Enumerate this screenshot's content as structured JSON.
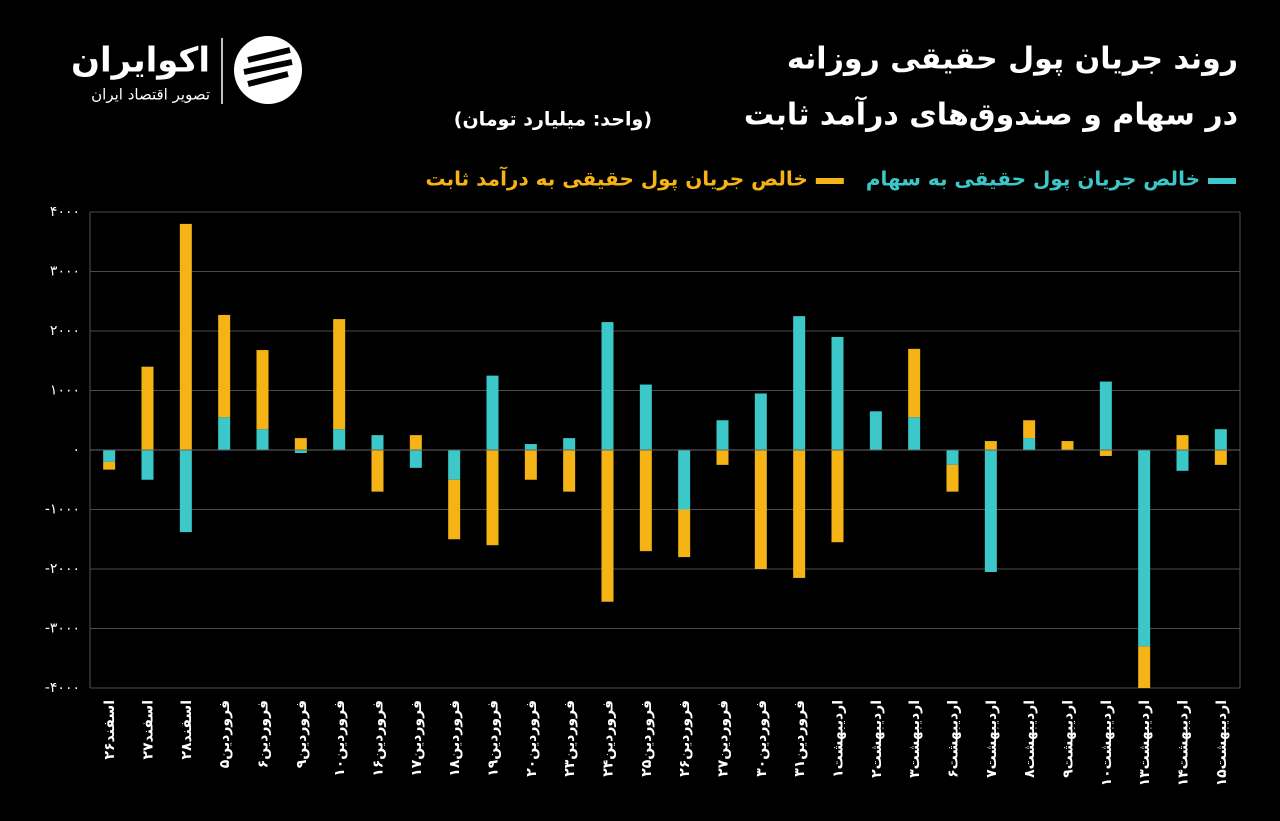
{
  "brand": {
    "name": "اکوایران",
    "tagline": "تصویر اقتصاد ایران"
  },
  "chart_data": {
    "type": "bar",
    "stacked": true,
    "title": "روند جریان پول حقیقی روزانه",
    "subtitle": "در سهام و صندوق‌های درآمد ثابت",
    "unit": "(واحد: میلیارد تومان)",
    "categories": [
      "اسفند۲۶",
      "اسفند۲۷",
      "اسفند۲۸",
      "فروردین۵",
      "فروردین۶",
      "فروردین۹",
      "فروردین۱۰",
      "فروردین۱۶",
      "فروردین۱۷",
      "فروردین۱۸",
      "فروردین۱۹",
      "فروردین۲۰",
      "فروردین۲۳",
      "فروردین۲۴",
      "فروردین۲۵",
      "فروردین۲۶",
      "فروردین۲۷",
      "فروردین۳۰",
      "فروردین۳۱",
      "اردیبهشت۱",
      "اردیبهشت۲",
      "اردیبهشت۳",
      "اردیبهشت۶",
      "اردیبهشت۷",
      "اردیبهشت۸",
      "اردیبهشت۹",
      "اردیبهشت۱۰",
      "اردیبهشت۱۳",
      "اردیبهشت۱۴",
      "اردیبهشت۱۵"
    ],
    "series": [
      {
        "name": "خالص جریان پول حقیقی به سهام",
        "color": "#3cc8c8",
        "values": [
          -200,
          -500,
          -1380,
          550,
          350,
          -50,
          350,
          250,
          -300,
          -500,
          1250,
          100,
          200,
          2150,
          1100,
          -1000,
          500,
          950,
          2250,
          1900,
          650,
          550,
          -250,
          -2050,
          200,
          0,
          1150,
          -3300,
          -350,
          350
        ]
      },
      {
        "name": "خالص جریان پول حقیقی به درآمد ثابت",
        "color": "#f5b316",
        "values": [
          -130,
          1400,
          3800,
          1720,
          1330,
          200,
          1850,
          -700,
          250,
          -1000,
          -1600,
          -500,
          -700,
          -2550,
          -1700,
          -800,
          -250,
          -2000,
          -2150,
          -1550,
          0,
          1150,
          -450,
          150,
          300,
          150,
          -100,
          -700,
          250,
          -250
        ]
      }
    ],
    "ylim": [
      -4000,
      4000
    ],
    "yticks": [
      {
        "value": -4000,
        "label": "-۴۰۰۰"
      },
      {
        "value": -3000,
        "label": "-۳۰۰۰"
      },
      {
        "value": -2000,
        "label": "-۲۰۰۰"
      },
      {
        "value": -1000,
        "label": "-۱۰۰۰"
      },
      {
        "value": 0,
        "label": "۰"
      },
      {
        "value": 1000,
        "label": "۱۰۰۰"
      },
      {
        "value": 2000,
        "label": "۲۰۰۰"
      },
      {
        "value": 3000,
        "label": "۳۰۰۰"
      },
      {
        "value": 4000,
        "label": "۴۰۰۰"
      }
    ],
    "grid": true
  }
}
